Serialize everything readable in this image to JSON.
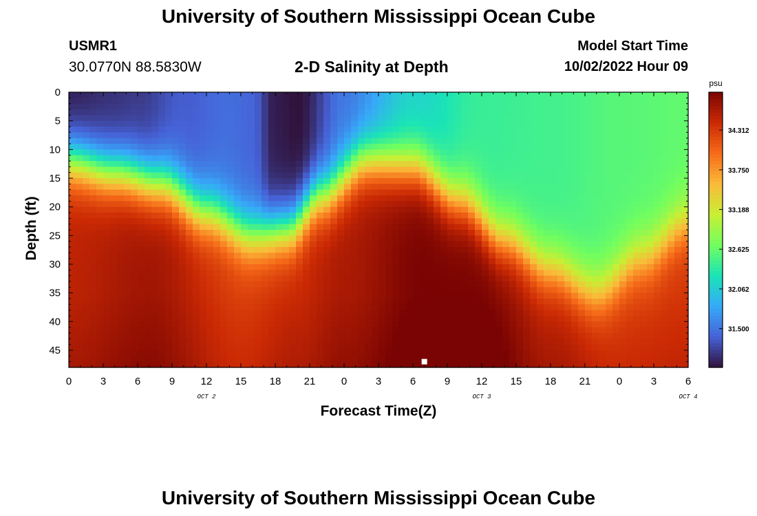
{
  "header": {
    "title": "University of Southern Mississippi Ocean Cube",
    "station": "USMR1",
    "coordinates": "30.0770N  88.5830W",
    "subtitle": "2-D Salinity at Depth",
    "model_start_label": "Model Start Time",
    "model_start_value": "10/02/2022 Hour 09"
  },
  "footer": {
    "title": "University of Southern Mississippi Ocean Cube"
  },
  "chart_data": {
    "type": "heatmap",
    "title": "2-D Salinity at Depth",
    "xlabel": "Forecast Time(Z)",
    "ylabel": "Depth (ft)",
    "x_tick_labels": [
      "0",
      "3",
      "6",
      "9",
      "12",
      "15",
      "18",
      "21",
      "0",
      "3",
      "6",
      "9",
      "12",
      "15",
      "18",
      "21",
      "0",
      "3",
      "6"
    ],
    "day_labels": [
      {
        "text": "OCT 2",
        "hour": 12
      },
      {
        "text": "OCT 3",
        "hour": 36
      },
      {
        "text": "OCT 4",
        "hour": 54
      }
    ],
    "xlim": [
      0,
      54
    ],
    "y_ticks": [
      0,
      5,
      10,
      15,
      20,
      25,
      30,
      35,
      40,
      45
    ],
    "ylim": [
      0,
      48
    ],
    "y_inverted": true,
    "units": "psu",
    "colorbar_ticks": [
      31.5,
      32.062,
      32.625,
      33.188,
      33.75,
      34.312
    ],
    "colorbar_tick_labels": [
      "31.500",
      "32.062",
      "32.625",
      "33.188",
      "33.750",
      "34.312"
    ],
    "color_range": [
      30.95,
      34.85
    ],
    "colormap": [
      "#30123b",
      "#4662d7",
      "#36aaf9",
      "#1ae4b6",
      "#72fe5e",
      "#c8ef34",
      "#faba39",
      "#f66b19",
      "#cb2a04",
      "#7a0403"
    ],
    "surface_salinity_profile": {
      "hours": [
        0,
        4,
        6,
        10,
        14,
        16,
        18,
        20,
        24,
        30,
        36,
        42,
        48,
        54
      ],
      "salinity": [
        31.0,
        31.1,
        31.15,
        31.35,
        31.45,
        31.4,
        31.0,
        30.95,
        31.5,
        32.1,
        32.4,
        32.45,
        32.55,
        32.6
      ]
    },
    "bottom_salinity_profile": {
      "hours": [
        0,
        7,
        15,
        20,
        24,
        31,
        36,
        42,
        48,
        54
      ],
      "salinity": [
        34.5,
        34.65,
        34.3,
        34.45,
        34.6,
        34.85,
        34.85,
        34.5,
        34.3,
        34.35
      ]
    },
    "halocline_depth_profile": {
      "hours": [
        0,
        4,
        8,
        12,
        16,
        19,
        22,
        26,
        30,
        34,
        38,
        42,
        46,
        50,
        54
      ],
      "depth_ft": [
        12,
        14,
        16,
        21,
        25,
        24,
        18,
        12,
        13,
        19,
        26,
        31,
        35,
        29,
        23
      ]
    },
    "halocline_thickness_ft": 5.5,
    "marker": {
      "hour": 31,
      "depth_ft": 47,
      "color": "#ffffff"
    }
  }
}
